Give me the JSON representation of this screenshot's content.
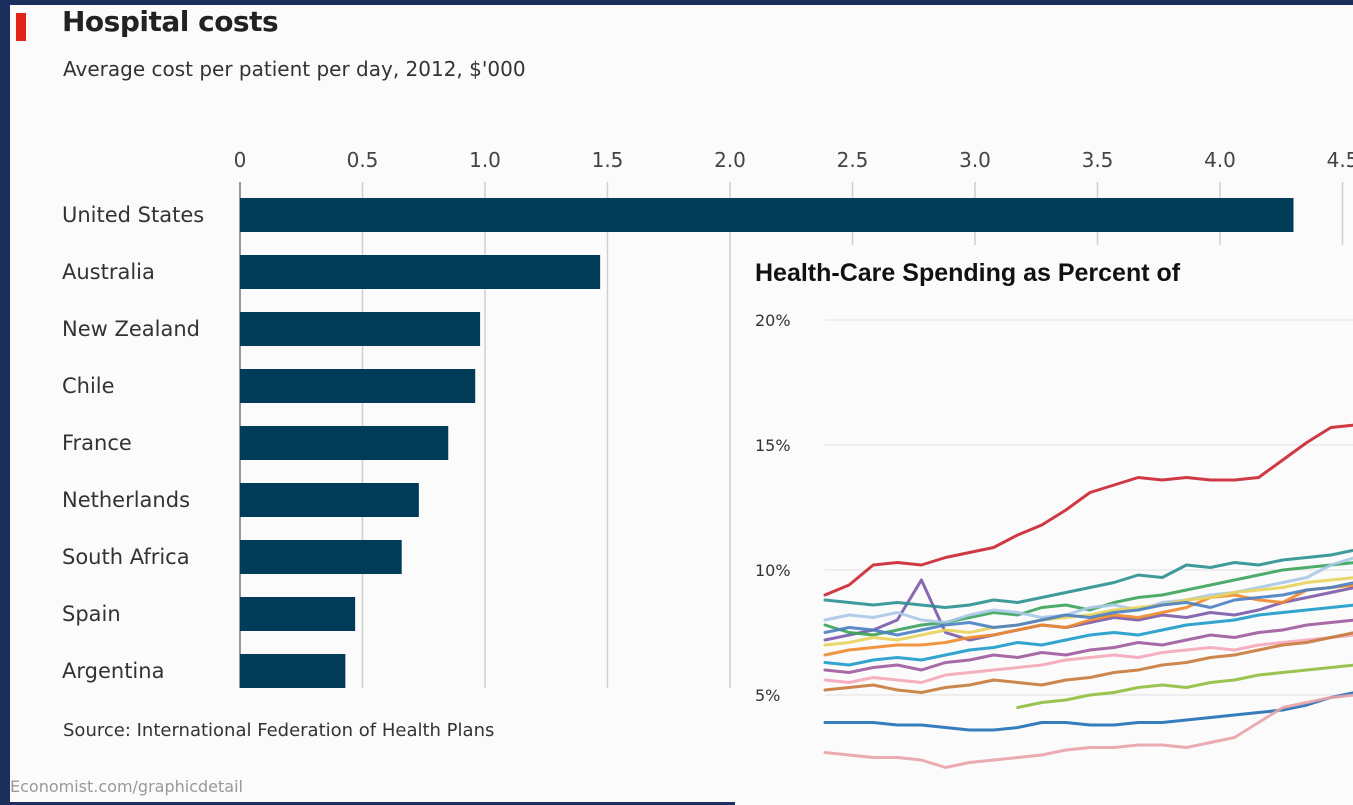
{
  "chart_data": [
    {
      "type": "bar",
      "title": "Hospital costs",
      "subtitle": "Average cost per patient per day, 2012, $'000",
      "source": "Source: International Federation of Health Plans",
      "credit": "Economist.com/graphicdetail",
      "categories": [
        "United States",
        "Australia",
        "New Zealand",
        "Chile",
        "France",
        "Netherlands",
        "South Africa",
        "Spain",
        "Argentina"
      ],
      "values": [
        4.3,
        1.47,
        0.98,
        0.96,
        0.85,
        0.73,
        0.66,
        0.47,
        0.43
      ],
      "x_ticks": [
        "0",
        "0.5",
        "1.0",
        "1.5",
        "2.0",
        "2.5",
        "3.0",
        "3.5",
        "4.0",
        "4.5"
      ],
      "xlim": [
        0,
        4.5
      ],
      "grid": true,
      "bar_color": "#003c57",
      "accent_color": "#e2231a"
    },
    {
      "type": "line",
      "title": "Health-Care Spending as Percent of",
      "y_ticks": [
        "20%",
        "15%",
        "10%",
        "5%"
      ],
      "ylim": [
        0,
        20
      ],
      "x": [
        1,
        2,
        3,
        4,
        5,
        6,
        7,
        8,
        9,
        10,
        11,
        12,
        13,
        14,
        15,
        16,
        17,
        18,
        19,
        20,
        21,
        22,
        23
      ],
      "grid": true,
      "series": [
        {
          "color": "#c9242f",
          "values": [
            9.0,
            9.4,
            10.2,
            10.3,
            10.2,
            10.5,
            10.7,
            10.9,
            11.4,
            11.8,
            12.4,
            13.1,
            13.4,
            13.7,
            13.6,
            13.7,
            13.6,
            13.6,
            13.7,
            14.4,
            15.1,
            15.7,
            15.8
          ]
        },
        {
          "color": "#1f6fb5",
          "values": [
            3.9,
            3.9,
            3.9,
            3.8,
            3.8,
            3.7,
            3.6,
            3.6,
            3.7,
            3.9,
            3.9,
            3.8,
            3.8,
            3.9,
            3.9,
            4.0,
            4.1,
            4.2,
            4.3,
            4.4,
            4.6,
            4.9,
            5.1
          ]
        },
        {
          "color": "#e8a3a8",
          "values": [
            2.7,
            2.6,
            2.5,
            2.5,
            2.4,
            2.1,
            2.3,
            2.4,
            2.5,
            2.6,
            2.8,
            2.9,
            2.9,
            3.0,
            3.0,
            2.9,
            3.1,
            3.3,
            3.9,
            4.5,
            4.7,
            4.9,
            5.0
          ]
        },
        {
          "color": "#7a5aa8",
          "values": [
            7.2,
            7.4,
            7.6,
            8.0,
            9.6,
            7.5,
            7.2,
            7.4,
            7.6,
            7.8,
            7.7,
            7.9,
            8.1,
            8.0,
            8.2,
            8.1,
            8.3,
            8.2,
            8.4,
            8.7,
            8.9,
            9.1,
            9.3
          ]
        },
        {
          "color": "#2a8f8f",
          "values": [
            8.8,
            8.7,
            8.6,
            8.7,
            8.6,
            8.5,
            8.6,
            8.8,
            8.7,
            8.9,
            9.1,
            9.3,
            9.5,
            9.8,
            9.7,
            10.2,
            10.1,
            10.3,
            10.2,
            10.4,
            10.5,
            10.6,
            10.8
          ]
        },
        {
          "color": "#f08a2c",
          "values": [
            6.6,
            6.8,
            6.9,
            7.0,
            7.0,
            7.1,
            7.3,
            7.4,
            7.6,
            7.8,
            7.7,
            8.0,
            8.2,
            8.1,
            8.3,
            8.5,
            8.9,
            9.0,
            8.8,
            8.7,
            9.2,
            9.3,
            9.4
          ]
        },
        {
          "color": "#3aa35a",
          "values": [
            7.8,
            7.5,
            7.4,
            7.6,
            7.8,
            7.9,
            8.1,
            8.3,
            8.2,
            8.5,
            8.6,
            8.4,
            8.7,
            8.9,
            9.0,
            9.2,
            9.4,
            9.6,
            9.8,
            10.0,
            10.1,
            10.2,
            10.3
          ]
        },
        {
          "color": "#1b9bc9",
          "values": [
            6.3,
            6.2,
            6.4,
            6.5,
            6.4,
            6.6,
            6.8,
            6.9,
            7.1,
            7.0,
            7.2,
            7.4,
            7.5,
            7.4,
            7.6,
            7.8,
            7.9,
            8.0,
            8.2,
            8.3,
            8.4,
            8.5,
            8.6
          ]
        },
        {
          "color": "#8fbc3f",
          "values": [
            null,
            null,
            null,
            null,
            null,
            null,
            null,
            null,
            4.5,
            4.7,
            4.8,
            5.0,
            5.1,
            5.3,
            5.4,
            5.3,
            5.5,
            5.6,
            5.8,
            5.9,
            6.0,
            6.1,
            6.2
          ]
        },
        {
          "color": "#f4a6b8",
          "values": [
            5.6,
            5.5,
            5.7,
            5.6,
            5.5,
            5.8,
            5.9,
            6.0,
            6.1,
            6.2,
            6.4,
            6.5,
            6.6,
            6.5,
            6.7,
            6.8,
            6.9,
            6.8,
            7.0,
            7.1,
            7.2,
            7.3,
            7.4
          ]
        },
        {
          "color": "#a8c8e8",
          "values": [
            8.0,
            8.2,
            8.1,
            8.3,
            8.0,
            7.9,
            8.2,
            8.4,
            8.3,
            8.1,
            8.2,
            8.5,
            8.6,
            8.4,
            8.7,
            8.8,
            9.0,
            9.1,
            9.3,
            9.5,
            9.7,
            10.2,
            10.5
          ]
        },
        {
          "color": "#c57a3a",
          "values": [
            5.2,
            5.3,
            5.4,
            5.2,
            5.1,
            5.3,
            5.4,
            5.6,
            5.5,
            5.4,
            5.6,
            5.7,
            5.9,
            6.0,
            6.2,
            6.3,
            6.5,
            6.6,
            6.8,
            7.0,
            7.1,
            7.3,
            7.5
          ]
        },
        {
          "color": "#e8d35a",
          "values": [
            7.0,
            7.1,
            7.3,
            7.2,
            7.4,
            7.6,
            7.5,
            7.7,
            7.8,
            8.0,
            8.1,
            8.2,
            8.4,
            8.5,
            8.6,
            8.8,
            8.9,
            9.1,
            9.2,
            9.3,
            9.5,
            9.6,
            9.7
          ]
        },
        {
          "color": "#4a7fc1",
          "values": [
            7.5,
            7.7,
            7.6,
            7.4,
            7.6,
            7.8,
            7.9,
            7.7,
            7.8,
            8.0,
            8.2,
            8.1,
            8.3,
            8.4,
            8.6,
            8.7,
            8.5,
            8.8,
            8.9,
            9.0,
            9.2,
            9.3,
            9.5
          ]
        },
        {
          "color": "#9d5a9d",
          "values": [
            6.0,
            5.9,
            6.1,
            6.2,
            6.0,
            6.3,
            6.4,
            6.6,
            6.5,
            6.7,
            6.6,
            6.8,
            6.9,
            7.1,
            7.0,
            7.2,
            7.4,
            7.3,
            7.5,
            7.6,
            7.8,
            7.9,
            8.0
          ]
        }
      ]
    }
  ]
}
